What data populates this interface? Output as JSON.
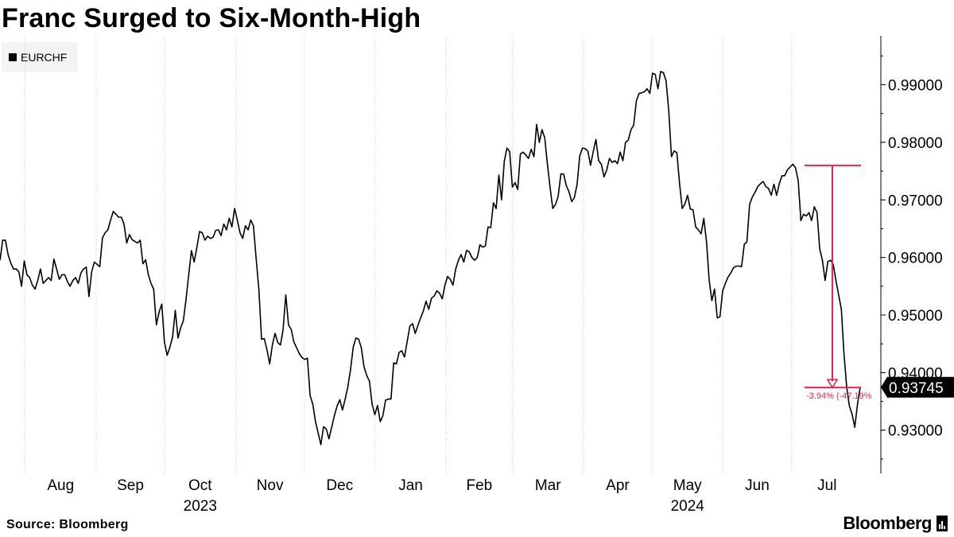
{
  "chart_data": {
    "type": "line",
    "title": "Franc Surged to Six-Month-High",
    "legend": [
      "EURCHF"
    ],
    "series": [
      {
        "name": "EURCHF",
        "color": "#000000",
        "values": [
          0.9595,
          0.963,
          0.963,
          0.9605,
          0.959,
          0.958,
          0.958,
          0.9575,
          0.955,
          0.9594,
          0.957,
          0.9565,
          0.9552,
          0.9545,
          0.956,
          0.958,
          0.9555,
          0.956,
          0.9565,
          0.956,
          0.9597,
          0.958,
          0.9562,
          0.957,
          0.957,
          0.9558,
          0.955,
          0.956,
          0.9565,
          0.9555,
          0.9573,
          0.958,
          0.9583,
          0.9532,
          0.9575,
          0.9592,
          0.9588,
          0.9584,
          0.9634,
          0.9643,
          0.9648,
          0.9665,
          0.968,
          0.9675,
          0.967,
          0.967,
          0.9658,
          0.9625,
          0.964,
          0.9631,
          0.9628,
          0.9625,
          0.963,
          0.9589,
          0.9596,
          0.957,
          0.9555,
          0.9545,
          0.9483,
          0.9505,
          0.9519,
          0.9452,
          0.943,
          0.9444,
          0.9462,
          0.9508,
          0.946,
          0.9478,
          0.949,
          0.9527,
          0.957,
          0.9612,
          0.9592,
          0.9617,
          0.9645,
          0.9643,
          0.963,
          0.9637,
          0.9633,
          0.9635,
          0.9647,
          0.9648,
          0.9638,
          0.9658,
          0.9648,
          0.9668,
          0.9653,
          0.9685,
          0.9665,
          0.9643,
          0.9633,
          0.9655,
          0.9648,
          0.9665,
          0.9655,
          0.9598,
          0.9545,
          0.9458,
          0.9459,
          0.944,
          0.9415,
          0.9448,
          0.9468,
          0.9452,
          0.9448,
          0.9475,
          0.9535,
          0.9483,
          0.9475,
          0.9453,
          0.9443,
          0.9433,
          0.9426,
          0.9423,
          0.9425,
          0.936,
          0.9345,
          0.9315,
          0.9295,
          0.9275,
          0.9306,
          0.9302,
          0.9285,
          0.9305,
          0.9325,
          0.9342,
          0.9353,
          0.9335,
          0.9354,
          0.9375,
          0.9405,
          0.9444,
          0.946,
          0.9458,
          0.9443,
          0.941,
          0.9395,
          0.9385,
          0.9345,
          0.9327,
          0.9343,
          0.9315,
          0.9325,
          0.9352,
          0.9354,
          0.9354,
          0.9417,
          0.9415,
          0.9435,
          0.9438,
          0.9427,
          0.9454,
          0.9481,
          0.9485,
          0.9468,
          0.9482,
          0.9495,
          0.9507,
          0.9524,
          0.951,
          0.9529,
          0.9533,
          0.9542,
          0.9538,
          0.9528,
          0.9552,
          0.9567,
          0.9562,
          0.9552,
          0.958,
          0.9595,
          0.9605,
          0.9592,
          0.9612,
          0.961,
          0.96,
          0.9595,
          0.96,
          0.9622,
          0.9618,
          0.962,
          0.9653,
          0.9652,
          0.9695,
          0.9685,
          0.9743,
          0.97,
          0.9767,
          0.979,
          0.9784,
          0.9722,
          0.973,
          0.9718,
          0.978,
          0.9783,
          0.9778,
          0.9772,
          0.9788,
          0.9775,
          0.9831,
          0.98,
          0.9822,
          0.9808,
          0.9763,
          0.9722,
          0.9685,
          0.9692,
          0.9706,
          0.9745,
          0.9745,
          0.9725,
          0.9714,
          0.9697,
          0.9704,
          0.9727,
          0.9776,
          0.979,
          0.9789,
          0.9785,
          0.976,
          0.9784,
          0.9805,
          0.9768,
          0.9762,
          0.974,
          0.9752,
          0.9772,
          0.9765,
          0.9768,
          0.9763,
          0.9783,
          0.9768,
          0.98,
          0.9804,
          0.9822,
          0.983,
          0.9872,
          0.9885,
          0.9886,
          0.9888,
          0.9893,
          0.9885,
          0.992,
          0.9918,
          0.9893,
          0.9923,
          0.9921,
          0.9907,
          0.9855,
          0.9775,
          0.9785,
          0.9782,
          0.973,
          0.9685,
          0.9693,
          0.9708,
          0.9684,
          0.9683,
          0.9653,
          0.9648,
          0.9641,
          0.9668,
          0.9627,
          0.956,
          0.9525,
          0.9545,
          0.9495,
          0.9497,
          0.9542,
          0.9555,
          0.9566,
          0.9573,
          0.9582,
          0.9585,
          0.9585,
          0.9584,
          0.9623,
          0.9627,
          0.9692,
          0.9705,
          0.9713,
          0.9723,
          0.9728,
          0.9732,
          0.9723,
          0.972,
          0.9708,
          0.9727,
          0.9708,
          0.9728,
          0.9742,
          0.9742,
          0.9752,
          0.9757,
          0.9762,
          0.9756,
          0.9734,
          0.9664,
          0.9675,
          0.9672,
          0.9678,
          0.9664,
          0.9688,
          0.9678,
          0.9615,
          0.9595,
          0.956,
          0.9593,
          0.9595,
          0.9588,
          0.956,
          0.9535,
          0.951,
          0.9433,
          0.9375,
          0.9342,
          0.9328,
          0.9305,
          0.9345,
          0.93745
        ]
      }
    ],
    "x_axis": {
      "start_date": "2023-07-21",
      "end_date": "2024-07-31",
      "month_labels": [
        "Aug",
        "Sep",
        "Oct",
        "Nov",
        "Dec",
        "Jan",
        "Feb",
        "Mar",
        "Apr",
        "May",
        "Jun",
        "Jul"
      ],
      "year_labels": [
        "2023",
        "2024"
      ]
    },
    "y_axis": {
      "ylim": [
        0.9225,
        0.9985
      ],
      "ticks": [
        "0.99000",
        "0.98000",
        "0.97000",
        "0.96000",
        "0.95000",
        "0.94000",
        "0.93000"
      ],
      "side": "right"
    },
    "last_value_label": "0.93745",
    "annotation": {
      "from_value": 0.976,
      "to_value": 0.9374,
      "label": "-3.94% (-47.19%",
      "color": "#e8264a"
    },
    "grid": "vertical dotted",
    "legend_position": "top-left"
  },
  "footer": {
    "source": "Source: Bloomberg",
    "brand": "Bloomberg"
  }
}
